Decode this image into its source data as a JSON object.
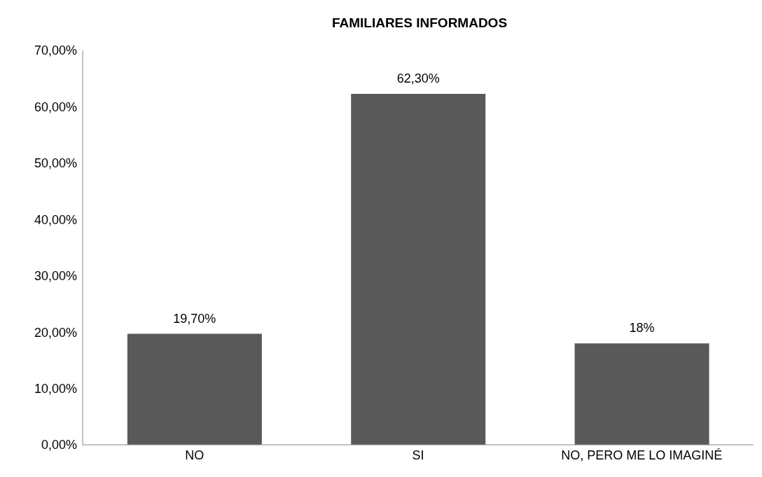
{
  "chart_data": {
    "type": "bar",
    "title": "FAMILIARES INFORMADOS",
    "categories": [
      "NO",
      "SI",
      "NO, PERO ME LO IMAGINÉ"
    ],
    "values": [
      19.7,
      62.3,
      18
    ],
    "color": "#595959",
    "value_labels": [
      "19,70%",
      "62,30%",
      "18%"
    ],
    "ylim": [
      0,
      70
    ],
    "yticks": [
      {
        "value": 0,
        "label": "0,00%"
      },
      {
        "value": 10,
        "label": "10,00%"
      },
      {
        "value": 20,
        "label": "20,00%"
      },
      {
        "value": 30,
        "label": "30,00%"
      },
      {
        "value": 40,
        "label": "40,00%"
      },
      {
        "value": 50,
        "label": "50,00%"
      },
      {
        "value": 60,
        "label": "60,00%"
      },
      {
        "value": 70,
        "label": "70,00%"
      }
    ],
    "grid": false
  }
}
